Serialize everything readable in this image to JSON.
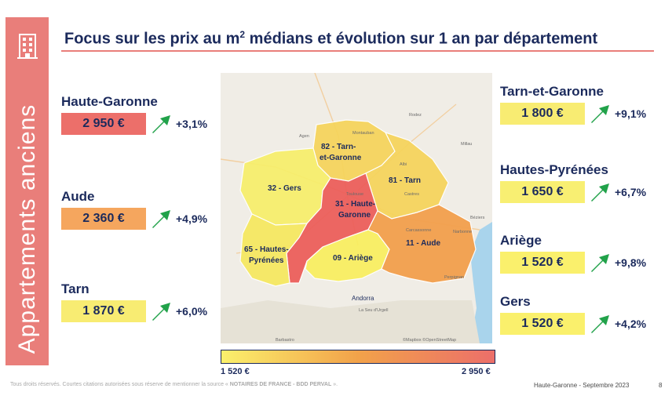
{
  "banner": {
    "title": "Appartements anciens",
    "icon": "building-icon"
  },
  "header": {
    "title_pre": "Focus sur les prix au m",
    "title_sup": "2",
    "title_post": " médians et évolution sur 1 an par département"
  },
  "colors": {
    "accent": "#e97e7a",
    "navy": "#1b2a5c",
    "red": "#ec6f6a",
    "orange": "#f5a65e",
    "yellow": "#fbf06c",
    "arrow": "#21a24a"
  },
  "departments": {
    "haute_garonne": {
      "name": "Haute-Garonne",
      "price": "2 950 €",
      "evolution": "+3,1%",
      "color": "#ec6f6a"
    },
    "aude": {
      "name": "Aude",
      "price": "2 360 €",
      "evolution": "+4,9%",
      "color": "#f5a65e"
    },
    "tarn": {
      "name": "Tarn",
      "price": "1 870 €",
      "evolution": "+6,0%",
      "color": "#f8ec72"
    },
    "tarn_et_garonne": {
      "name": "Tarn-et-Garonne",
      "price": "1 800 €",
      "evolution": "+9,1%",
      "color": "#f8ec72"
    },
    "hautes_pyrenees": {
      "name": "Hautes-Pyrénées",
      "price": "1 650 €",
      "evolution": "+6,7%",
      "color": "#f8ef72"
    },
    "ariege": {
      "name": "Ariège",
      "price": "1 520 €",
      "evolution": "+9,8%",
      "color": "#faf06c"
    },
    "gers": {
      "name": "Gers",
      "price": "1 520 €",
      "evolution": "+4,2%",
      "color": "#faf06c"
    }
  },
  "map": {
    "labels": {
      "tarn_et_garonne_1": "82 - Tarn-",
      "tarn_et_garonne_2": "et-Garonne",
      "tarn": "81 - Tarn",
      "gers": "32 - Gers",
      "haute_garonne_1": "31 - Haute-",
      "haute_garonne_2": "Garonne",
      "hautes_pyrenees_1": "65 - Hautes-",
      "hautes_pyrenees_2": "Pyrénées",
      "ariege": "09 - Ariège",
      "aude": "11 - Aude"
    },
    "places": {
      "toulouse": "Toulouse",
      "montauban": "Montauban",
      "albi": "Albi",
      "castres": "Castres",
      "carcassonne": "Carcassonne",
      "narbonne": "Narbonne",
      "beziers": "Béziers",
      "perpignan": "Perpignan",
      "andorra": "Andorra",
      "agen": "Agen",
      "millau": "Millau",
      "rodez": "Rodez",
      "barbastro": "Barbastro",
      "la_seu": "La Seu d'Urgell"
    },
    "attribution": "©Mapbox ©OpenStreetMap"
  },
  "legend": {
    "min": "1 520 €",
    "max": "2 950 €"
  },
  "footer": {
    "left_pre": "Tous droits réservés. Courtes citations autorisées sous réserve de mentionner la source « ",
    "left_source": "NOTAIRES DE FRANCE - BDD PERVAL",
    "left_post": " ».",
    "right": "Haute-Garonne - Septembre 2023",
    "page": "8"
  }
}
